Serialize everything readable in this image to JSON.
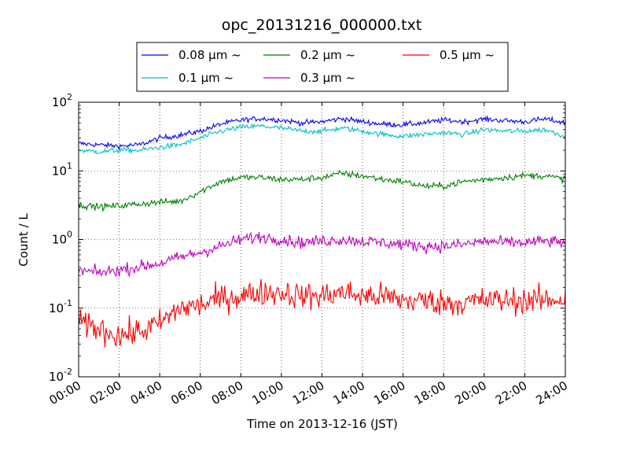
{
  "chart_data": {
    "type": "line",
    "title": "opc_20131216_000000.txt",
    "xlabel": "Time on 2013-12-16 (JST)",
    "ylabel": "Count / L",
    "yscale": "log",
    "ylim": [
      0.01,
      100
    ],
    "xlim": [
      "00:00",
      "24:00"
    ],
    "grid": true,
    "legend_position": "top-center",
    "x_tick_labels": [
      "00:00",
      "02:00",
      "04:00",
      "06:00",
      "08:00",
      "10:00",
      "12:00",
      "14:00",
      "16:00",
      "18:00",
      "20:00",
      "22:00",
      "24:00"
    ],
    "y_tick_labels": [
      {
        "value": 100,
        "base": "10",
        "exp": "2"
      },
      {
        "value": 10,
        "base": "10",
        "exp": "1"
      },
      {
        "value": 1,
        "base": "10",
        "exp": "0"
      },
      {
        "value": 0.1,
        "base": "10",
        "exp": "-1"
      },
      {
        "value": 0.01,
        "base": "10",
        "exp": "-2"
      }
    ],
    "x_hours": [
      0,
      1,
      2,
      3,
      4,
      5,
      6,
      7,
      8,
      9,
      10,
      11,
      12,
      13,
      14,
      15,
      16,
      17,
      18,
      19,
      20,
      21,
      22,
      23,
      24
    ],
    "series": [
      {
        "name": "0.08 μm ~",
        "color": "#0000ff",
        "noise": 0.04,
        "values": [
          25,
          24,
          23,
          24,
          30,
          33,
          38,
          48,
          55,
          58,
          55,
          50,
          52,
          58,
          52,
          48,
          47,
          50,
          55,
          52,
          57,
          54,
          52,
          57,
          50
        ]
      },
      {
        "name": "0.1 μm ~",
        "color": "#00bfbf",
        "noise": 0.04,
        "values": [
          20,
          19,
          20,
          20,
          22,
          24,
          30,
          38,
          43,
          45,
          42,
          38,
          38,
          42,
          38,
          34,
          32,
          34,
          36,
          34,
          40,
          38,
          38,
          40,
          32
        ]
      },
      {
        "name": "0.2 μm ~",
        "color": "#008000",
        "noise": 0.05,
        "values": [
          3.2,
          3.0,
          3.1,
          3.3,
          3.5,
          3.6,
          5.0,
          7.0,
          8.0,
          8.0,
          7.5,
          7.5,
          8.0,
          9.2,
          8.5,
          7.5,
          7.0,
          6.0,
          6.0,
          7.0,
          7.5,
          8.0,
          8.5,
          8.5,
          7.5
        ]
      },
      {
        "name": "0.3 μm ~",
        "color": "#bf00bf",
        "noise": 0.09,
        "values": [
          0.35,
          0.33,
          0.36,
          0.4,
          0.45,
          0.55,
          0.65,
          0.8,
          1.0,
          1.1,
          1.0,
          0.9,
          0.95,
          1.0,
          0.95,
          0.9,
          0.85,
          0.8,
          0.8,
          0.85,
          0.95,
          0.9,
          0.9,
          0.95,
          0.9
        ]
      },
      {
        "name": "0.5 μm ~",
        "color": "#ff0000",
        "noise": 0.2,
        "values": [
          0.06,
          0.05,
          0.04,
          0.045,
          0.06,
          0.1,
          0.11,
          0.14,
          0.15,
          0.17,
          0.17,
          0.15,
          0.15,
          0.17,
          0.15,
          0.15,
          0.13,
          0.13,
          0.12,
          0.12,
          0.13,
          0.13,
          0.13,
          0.13,
          0.14
        ]
      }
    ]
  }
}
